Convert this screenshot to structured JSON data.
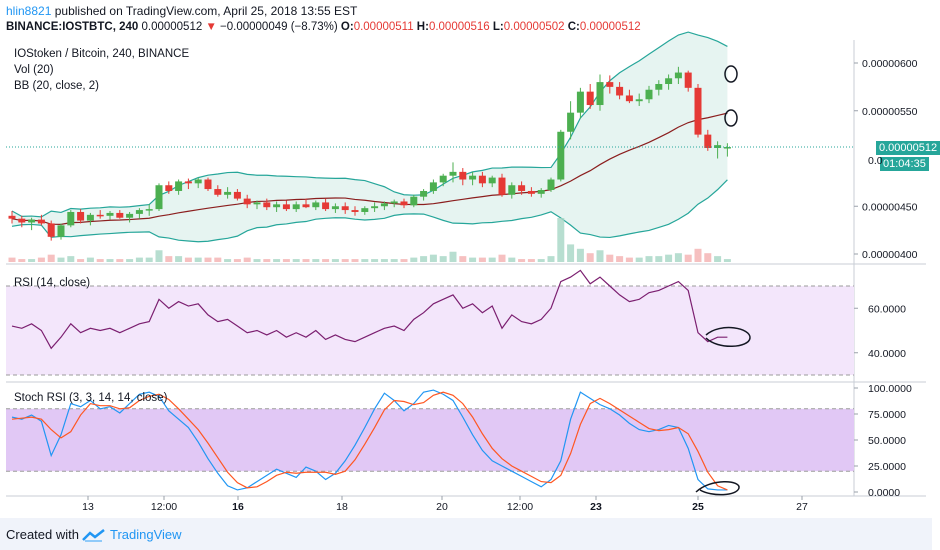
{
  "header": {
    "user": "hlin8821",
    "published_text": "published on TradingView.com, April 25, 2018 13:55 EST",
    "symbol": "BINANCE:IOSTBTC, 240",
    "last": "0.00000512",
    "change_arrow": "▼",
    "change": "−0.00000049 (−8.73%)",
    "o_label": "O:",
    "o_value": "0.00000511",
    "h_label": "H:",
    "h_value": "0.00000516",
    "l_label": "L:",
    "l_value": "0.00000502",
    "c_label": "C:",
    "c_value": "0.00000512"
  },
  "main_pane": {
    "title": "IOStoken / Bitcoin, 240, BINANCE",
    "vol_label": "Vol (20)",
    "bb_label": "BB (20, close, 2)",
    "y_ticks": [
      "0.00000600",
      "0.00000550",
      "0.00000450",
      "0.00000400"
    ],
    "last_price_tag": "0.00000512",
    "partial_tick": "0.0",
    "countdown_tag": "01:04:35"
  },
  "rsi_pane": {
    "title": "RSI (14, close)",
    "y_ticks": [
      "60.0000",
      "40.0000"
    ]
  },
  "stoch_pane": {
    "title": "Stoch RSI (3, 3, 14, 14, close)",
    "y_ticks": [
      "100.0000",
      "75.0000",
      "50.0000",
      "25.0000",
      "0.0000"
    ]
  },
  "x_axis": {
    "labels": [
      "13",
      "12:00",
      "16",
      "18",
      "20",
      "12:00",
      "23",
      "25",
      "27"
    ]
  },
  "footer": {
    "created_with": "Created with",
    "brand": "TradingView"
  },
  "colors": {
    "up": "#4caf50",
    "down": "#e53935",
    "bb_fill": "#e6f4f1",
    "bb_band": "#26a69a",
    "bb_basis": "#8b1e1e",
    "rsi_line": "#7b1f70",
    "rsi_fill": "#f3e6fb",
    "stoch_k": "#2196f3",
    "stoch_d": "#ff5722",
    "stoch_fill": "#e1c8f5"
  },
  "chart_data": {
    "type": "candlestick",
    "candles": [
      [
        4.4e-06,
        4.45e-06,
        4.32e-06,
        4.37e-06
      ],
      [
        4.37e-06,
        4.4e-06,
        4.28e-06,
        4.33e-06
      ],
      [
        4.33e-06,
        4.38e-06,
        4.25e-06,
        4.36e-06
      ],
      [
        4.36e-06,
        4.41e-06,
        4.3e-06,
        4.32e-06
      ],
      [
        4.32e-06,
        4.35e-06,
        4.14e-06,
        4.18e-06
      ],
      [
        4.18e-06,
        4.32e-06,
        4.15e-06,
        4.3e-06
      ],
      [
        4.3e-06,
        4.46e-06,
        4.28e-06,
        4.44e-06
      ],
      [
        4.44e-06,
        4.47e-06,
        4.32e-06,
        4.35e-06
      ],
      [
        4.35e-06,
        4.43e-06,
        4.3e-06,
        4.41e-06
      ],
      [
        4.41e-06,
        4.46e-06,
        4.37e-06,
        4.4e-06
      ],
      [
        4.4e-06,
        4.45e-06,
        4.36e-06,
        4.43e-06
      ],
      [
        4.43e-06,
        4.46e-06,
        4.37e-06,
        4.38e-06
      ],
      [
        4.38e-06,
        4.44e-06,
        4.33e-06,
        4.42e-06
      ],
      [
        4.42e-06,
        4.48e-06,
        4.37e-06,
        4.46e-06
      ],
      [
        4.46e-06,
        4.52e-06,
        4.4e-06,
        4.47e-06
      ],
      [
        4.47e-06,
        4.74e-06,
        4.45e-06,
        4.72e-06
      ],
      [
        4.72e-06,
        4.76e-06,
        4.63e-06,
        4.66e-06
      ],
      [
        4.66e-06,
        4.78e-06,
        4.62e-06,
        4.76e-06
      ],
      [
        4.76e-06,
        4.79e-06,
        4.68e-06,
        4.74e-06
      ],
      [
        4.74e-06,
        4.8e-06,
        4.69e-06,
        4.78e-06
      ],
      [
        4.78e-06,
        4.8e-06,
        4.66e-06,
        4.68e-06
      ],
      [
        4.68e-06,
        4.72e-06,
        4.6e-06,
        4.62e-06
      ],
      [
        4.62e-06,
        4.7e-06,
        4.58e-06,
        4.65e-06
      ],
      [
        4.65e-06,
        4.68e-06,
        4.56e-06,
        4.58e-06
      ],
      [
        4.58e-06,
        4.62e-06,
        4.48e-06,
        4.52e-06
      ],
      [
        4.52e-06,
        4.56e-06,
        4.47e-06,
        4.54e-06
      ],
      [
        4.54e-06,
        4.58e-06,
        4.46e-06,
        4.49e-06
      ],
      [
        4.49e-06,
        4.55e-06,
        4.44e-06,
        4.52e-06
      ],
      [
        4.52e-06,
        4.56e-06,
        4.45e-06,
        4.47e-06
      ],
      [
        4.47e-06,
        4.55e-06,
        4.44e-06,
        4.52e-06
      ],
      [
        4.52e-06,
        4.58e-06,
        4.48e-06,
        4.49e-06
      ],
      [
        4.49e-06,
        4.56e-06,
        4.46e-06,
        4.54e-06
      ],
      [
        4.54e-06,
        4.58e-06,
        4.45e-06,
        4.47e-06
      ],
      [
        4.47e-06,
        4.53e-06,
        4.43e-06,
        4.5e-06
      ],
      [
        4.5e-06,
        4.54e-06,
        4.42e-06,
        4.46e-06
      ],
      [
        4.46e-06,
        4.5e-06,
        4.4e-06,
        4.44e-06
      ],
      [
        4.44e-06,
        4.5e-06,
        4.41e-06,
        4.48e-06
      ],
      [
        4.48e-06,
        4.54e-06,
        4.44e-06,
        4.5e-06
      ],
      [
        4.5e-06,
        4.55e-06,
        4.46e-06,
        4.53e-06
      ],
      [
        4.53e-06,
        4.57e-06,
        4.49e-06,
        4.55e-06
      ],
      [
        4.55e-06,
        4.58e-06,
        4.48e-06,
        4.51e-06
      ],
      [
        4.51e-06,
        4.62e-06,
        4.49e-06,
        4.6e-06
      ],
      [
        4.6e-06,
        4.68e-06,
        4.56e-06,
        4.66e-06
      ],
      [
        4.66e-06,
        4.78e-06,
        4.63e-06,
        4.75e-06
      ],
      [
        4.75e-06,
        4.84e-06,
        4.71e-06,
        4.82e-06
      ],
      [
        4.82e-06,
        4.96e-06,
        4.75e-06,
        4.86e-06
      ],
      [
        4.86e-06,
        4.9e-06,
        4.72e-06,
        4.78e-06
      ],
      [
        4.78e-06,
        4.86e-06,
        4.72e-06,
        4.82e-06
      ],
      [
        4.82e-06,
        4.86e-06,
        4.7e-06,
        4.74e-06
      ],
      [
        4.74e-06,
        4.82e-06,
        4.7e-06,
        4.8e-06
      ],
      [
        4.8e-06,
        4.84e-06,
        4.6e-06,
        4.62e-06
      ],
      [
        4.62e-06,
        4.75e-06,
        4.58e-06,
        4.72e-06
      ],
      [
        4.72e-06,
        4.76e-06,
        4.62e-06,
        4.66e-06
      ],
      [
        4.66e-06,
        4.7e-06,
        4.6e-06,
        4.63e-06
      ],
      [
        4.63e-06,
        4.69e-06,
        4.59e-06,
        4.67e-06
      ],
      [
        4.67e-06,
        4.8e-06,
        4.65e-06,
        4.78e-06
      ],
      [
        4.78e-06,
        5.3e-06,
        4.76e-06,
        5.28e-06
      ],
      [
        5.28e-06,
        5.6e-06,
        5.2e-06,
        5.48e-06
      ],
      [
        5.48e-06,
        5.74e-06,
        5.42e-06,
        5.7e-06
      ],
      [
        5.7e-06,
        5.78e-06,
        5.52e-06,
        5.56e-06
      ],
      [
        5.56e-06,
        5.88e-06,
        5.5e-06,
        5.8e-06
      ],
      [
        5.8e-06,
        5.87e-06,
        5.68e-06,
        5.75e-06
      ],
      [
        5.75e-06,
        5.8e-06,
        5.62e-06,
        5.66e-06
      ],
      [
        5.66e-06,
        5.72e-06,
        5.58e-06,
        5.6e-06
      ],
      [
        5.6e-06,
        5.68e-06,
        5.55e-06,
        5.62e-06
      ],
      [
        5.62e-06,
        5.76e-06,
        5.58e-06,
        5.72e-06
      ],
      [
        5.72e-06,
        5.82e-06,
        5.66e-06,
        5.78e-06
      ],
      [
        5.78e-06,
        5.88e-06,
        5.72e-06,
        5.84e-06
      ],
      [
        5.84e-06,
        5.96e-06,
        5.78e-06,
        5.9e-06
      ],
      [
        5.9e-06,
        5.92e-06,
        5.7e-06,
        5.74e-06
      ],
      [
        5.74e-06,
        5.78e-06,
        5.22e-06,
        5.25e-06
      ],
      [
        5.25e-06,
        5.3e-06,
        5.08e-06,
        5.11e-06
      ],
      [
        5.11e-06,
        5.18e-06,
        5e-06,
        5.14e-06
      ],
      [
        5.11e-06,
        5.16e-06,
        5.02e-06,
        5.12e-06
      ]
    ],
    "volumes": [
      3,
      2,
      2,
      3,
      5,
      3,
      4,
      2,
      3,
      2,
      2,
      2,
      2,
      3,
      3,
      8,
      4,
      4,
      3,
      3,
      3,
      3,
      2,
      2,
      3,
      2,
      2,
      2,
      2,
      2,
      2,
      2,
      2,
      2,
      2,
      2,
      2,
      2,
      2,
      2,
      2,
      3,
      4,
      5,
      4,
      7,
      4,
      3,
      3,
      3,
      5,
      3,
      2,
      2,
      2,
      4,
      30,
      12,
      9,
      6,
      8,
      5,
      4,
      3,
      3,
      4,
      4,
      5,
      6,
      5,
      9,
      6,
      4,
      2
    ],
    "rsi": [
      52,
      51,
      53,
      50,
      42,
      47,
      53,
      49,
      51,
      50,
      51,
      49,
      51,
      53,
      54,
      64,
      60,
      63,
      61,
      62,
      57,
      54,
      55,
      52,
      49,
      50,
      48,
      50,
      47,
      49,
      47,
      50,
      46,
      48,
      46,
      45,
      47,
      49,
      51,
      52,
      50,
      55,
      58,
      62,
      64,
      66,
      60,
      62,
      58,
      61,
      51,
      57,
      54,
      53,
      55,
      60,
      72,
      74,
      77,
      71,
      74,
      70,
      66,
      63,
      64,
      67,
      68,
      70,
      72,
      68,
      49,
      45,
      47,
      47
    ],
    "stoch_k": [
      72,
      70,
      74,
      68,
      35,
      55,
      85,
      82,
      88,
      80,
      82,
      76,
      85,
      94,
      96,
      92,
      78,
      70,
      62,
      48,
      32,
      18,
      6,
      2,
      4,
      10,
      16,
      22,
      18,
      14,
      24,
      20,
      12,
      18,
      30,
      45,
      62,
      80,
      95,
      88,
      78,
      85,
      96,
      98,
      94,
      88,
      72,
      55,
      40,
      30,
      25,
      20,
      15,
      10,
      5,
      12,
      30,
      70,
      96,
      90,
      84,
      80,
      74,
      66,
      60,
      58,
      60,
      64,
      62,
      42,
      12,
      3,
      2,
      2
    ],
    "stoch_d": [
      70,
      71,
      72,
      70,
      60,
      52,
      58,
      74,
      85,
      83,
      83,
      80,
      81,
      88,
      92,
      94,
      89,
      80,
      70,
      60,
      47,
      33,
      19,
      9,
      4,
      5,
      10,
      16,
      19,
      18,
      19,
      19,
      19,
      17,
      20,
      31,
      46,
      62,
      79,
      88,
      87,
      84,
      86,
      93,
      96,
      93,
      85,
      72,
      56,
      42,
      32,
      25,
      20,
      15,
      10,
      9,
      16,
      37,
      65,
      85,
      90,
      85,
      79,
      73,
      67,
      61,
      59,
      60,
      62,
      56,
      39,
      19,
      6,
      2
    ]
  }
}
